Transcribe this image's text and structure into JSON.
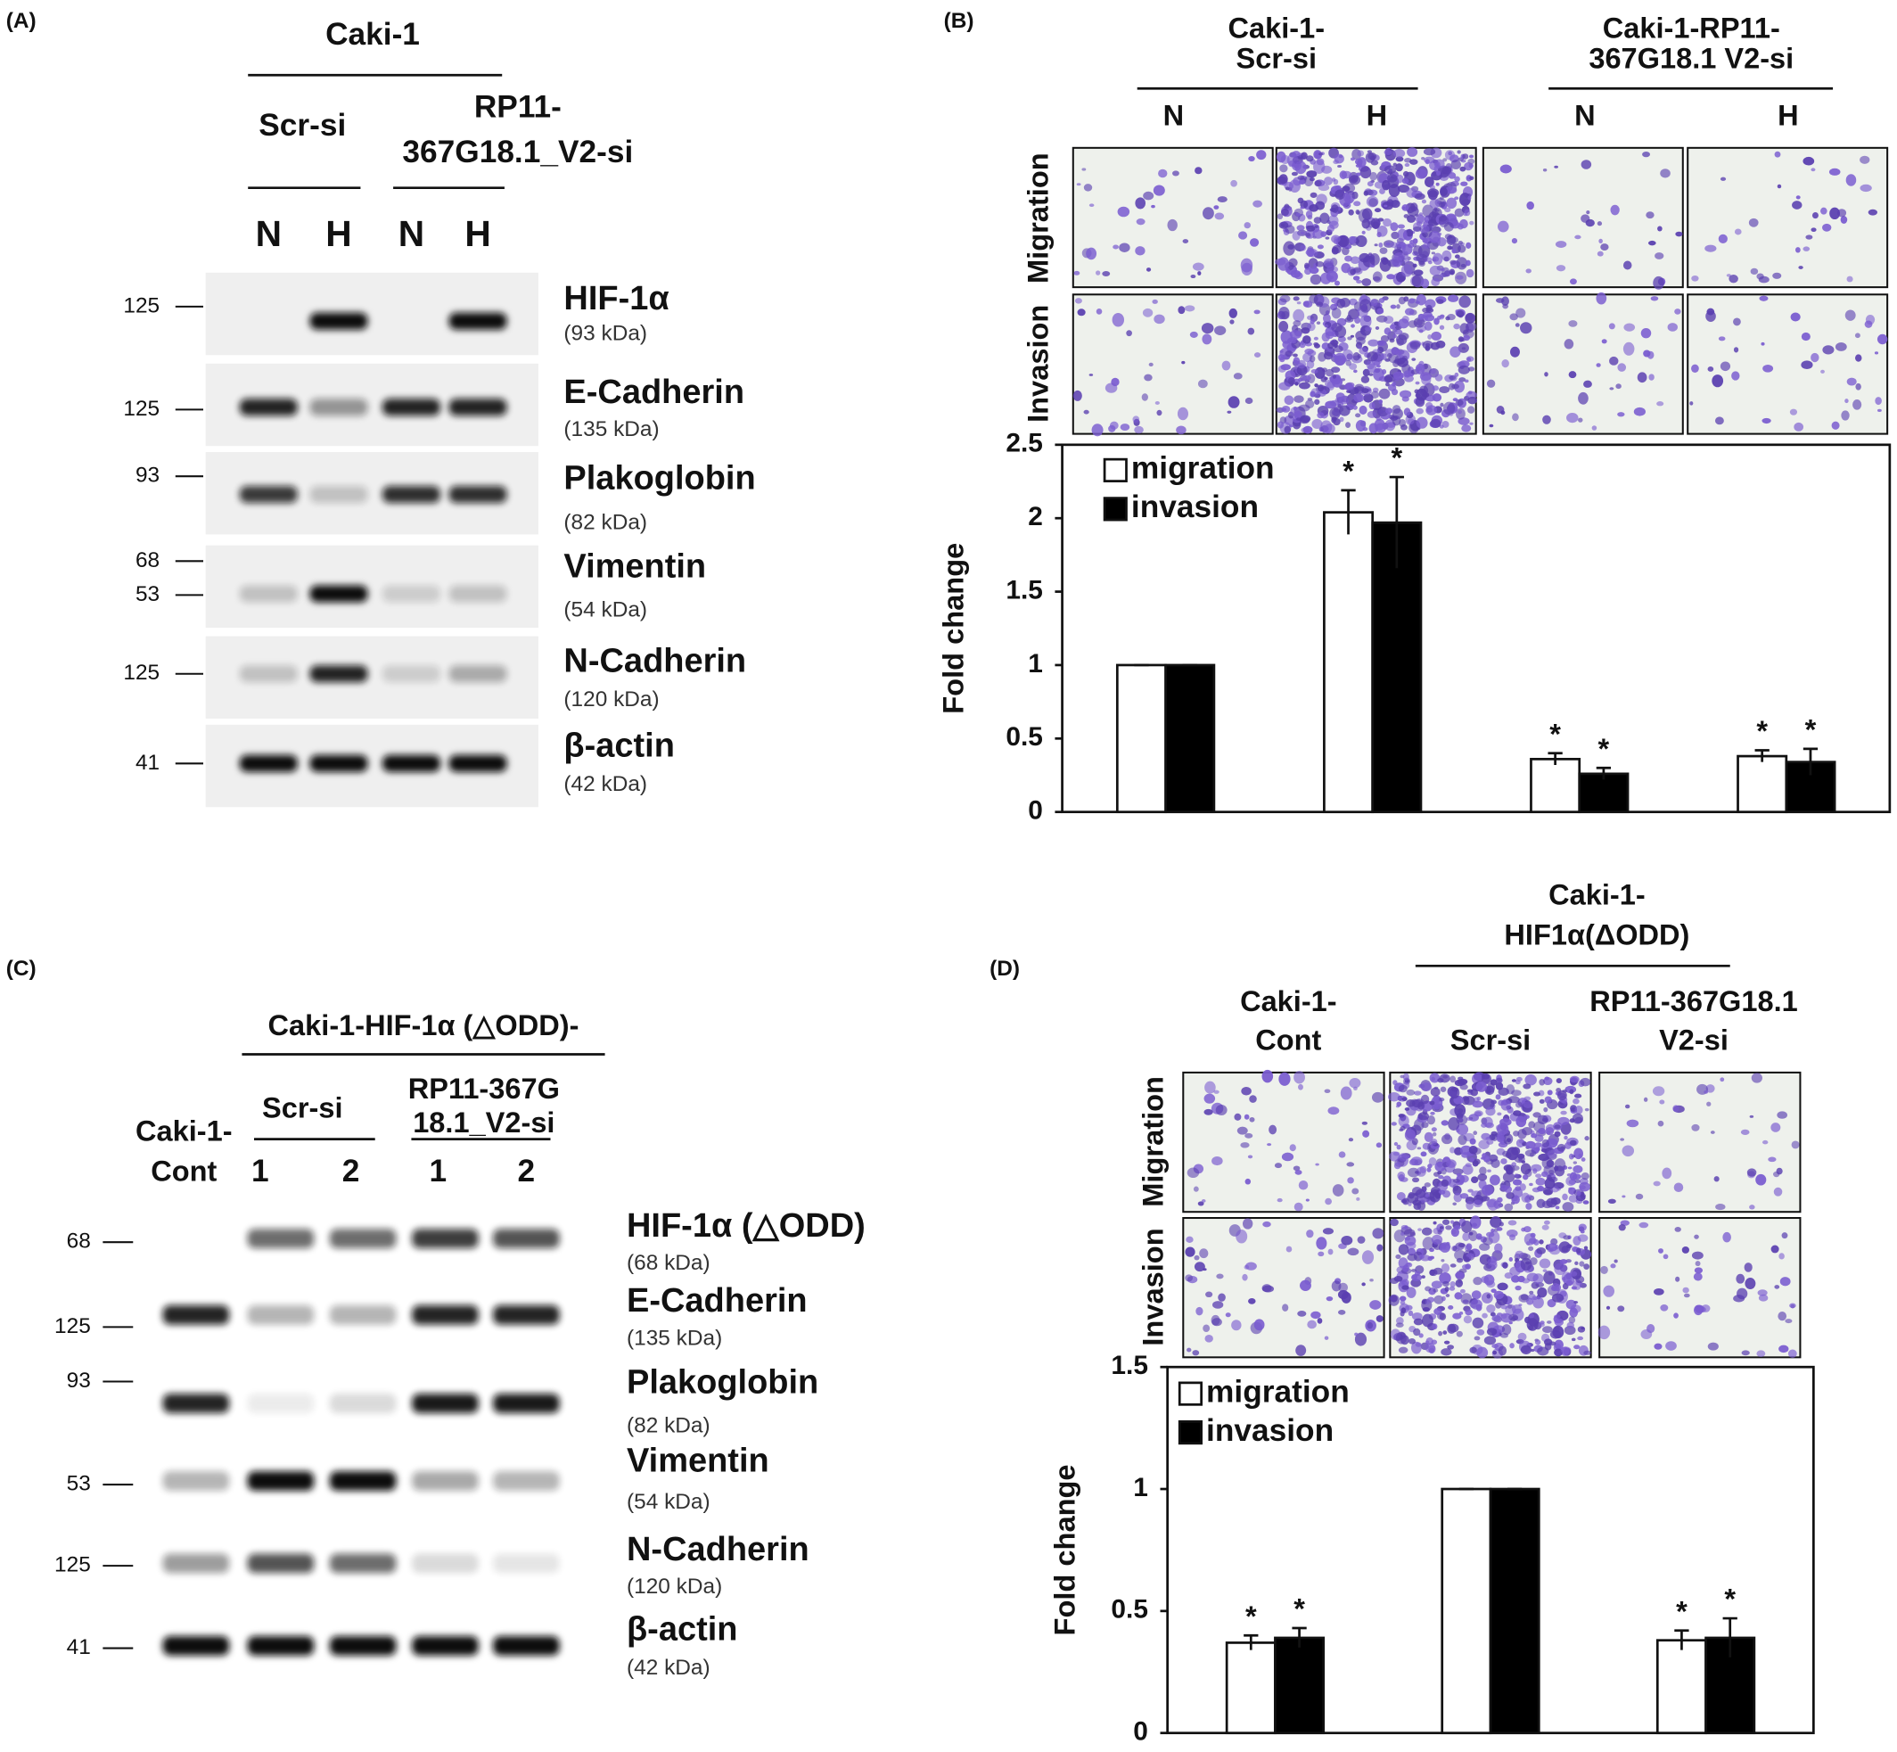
{
  "panel_a": {
    "label": "(A)",
    "title": "Caki-1",
    "groups": [
      [
        "Scr-si"
      ],
      [
        "RP11-",
        "367G18.1_V2-si"
      ]
    ],
    "lanes": [
      "N",
      "H",
      "N",
      "H"
    ],
    "rows": [
      {
        "markers": [
          125
        ],
        "name": "HIF-1α",
        "size": "(93 kDa)"
      },
      {
        "markers": [
          125
        ],
        "name": "E-Cadherin",
        "size": "(135 kDa)"
      },
      {
        "markers": [
          93
        ],
        "name": "Plakoglobin",
        "size": "(82 kDa)"
      },
      {
        "markers": [
          68,
          53
        ],
        "name": "Vimentin",
        "size": "(54 kDa)"
      },
      {
        "markers": [
          125
        ],
        "name": "N-Cadherin",
        "size": "(120 kDa)"
      },
      {
        "markers": [
          41
        ],
        "name": "β-actin",
        "size": "(42 kDa)"
      }
    ]
  },
  "panel_b": {
    "label": "(B)",
    "groups": [
      [
        "Caki-1-",
        "Scr-si"
      ],
      [
        "Caki-1-RP11-",
        "367G18.1 V2-si"
      ]
    ],
    "lanes": [
      "N",
      "H",
      "N",
      "H"
    ],
    "rows": [
      "Migration",
      "Invasion"
    ]
  },
  "panel_c": {
    "label": "(C)",
    "title": "Caki-1-HIF-1α (△ODD)-",
    "control": [
      "Caki-1-",
      "Cont"
    ],
    "groups": [
      [
        "Scr-si"
      ],
      [
        "RP11-367G",
        "18.1_V2-si"
      ]
    ],
    "lanes": [
      1,
      2,
      1,
      2
    ],
    "rows": [
      {
        "markers": [
          68
        ],
        "name": "HIF-1α (△ODD)",
        "size": "(68 kDa)"
      },
      {
        "markers": [
          125
        ],
        "name": "E-Cadherin",
        "size": "(135 kDa)"
      },
      {
        "markers": [
          93
        ],
        "name": "Plakoglobin",
        "size": "(82 kDa)"
      },
      {
        "markers": [
          53
        ],
        "name": "Vimentin",
        "size": "(54 kDa)"
      },
      {
        "markers": [
          125
        ],
        "name": "N-Cadherin",
        "size": "(120 kDa)"
      },
      {
        "markers": [
          41
        ],
        "name": "β-actin",
        "size": "(42 kDa)"
      }
    ]
  },
  "panel_d": {
    "label": "(D)",
    "title": [
      "Caki-1-",
      "HIF1α(ΔODD)"
    ],
    "columns": [
      [
        "Caki-1-",
        "Cont"
      ],
      [
        "Scr-si"
      ],
      [
        "RP11-367G18.1",
        "V2-si"
      ]
    ],
    "rows": [
      "Migration",
      "Invasion"
    ]
  },
  "chart_data": [
    {
      "type": "bar",
      "ylabel": "Fold change",
      "categories": [
        null,
        null,
        null,
        null
      ],
      "series": [
        {
          "name": "migration",
          "color": "#ffffff",
          "values": [
            1,
            2.04,
            0.36,
            0.38
          ],
          "errors": [
            0,
            0.15,
            0.04,
            0.04
          ],
          "labels": [
            null,
            "*",
            "*",
            "*"
          ]
        },
        {
          "name": "invasion",
          "color": "#000000",
          "values": [
            1,
            1.97,
            0.26,
            0.34
          ],
          "errors": [
            0,
            0.31,
            0.04,
            0.09
          ],
          "labels": [
            null,
            "*",
            "*",
            "*"
          ]
        }
      ],
      "ylim": [
        0,
        2.5
      ],
      "yticks": [
        0,
        0.5,
        1,
        1.5,
        2,
        2.5
      ],
      "grid": false,
      "legend": "top-left"
    },
    {
      "type": "bar",
      "ylabel": "Fold change",
      "categories": [
        null,
        null,
        null
      ],
      "series": [
        {
          "name": "migration",
          "color": "#ffffff",
          "values": [
            0.37,
            1,
            0.38
          ],
          "errors": [
            0.03,
            0,
            0.04
          ],
          "labels": [
            "*",
            null,
            "*"
          ]
        },
        {
          "name": "invasion",
          "color": "#000000",
          "values": [
            0.39,
            1,
            0.39
          ],
          "errors": [
            0.04,
            0,
            0.08
          ],
          "labels": [
            "*",
            null,
            "*"
          ]
        }
      ],
      "ylim": [
        0,
        1.5
      ],
      "yticks": [
        0,
        0.5,
        1,
        1.5
      ],
      "grid": false,
      "legend": "top-left"
    }
  ]
}
